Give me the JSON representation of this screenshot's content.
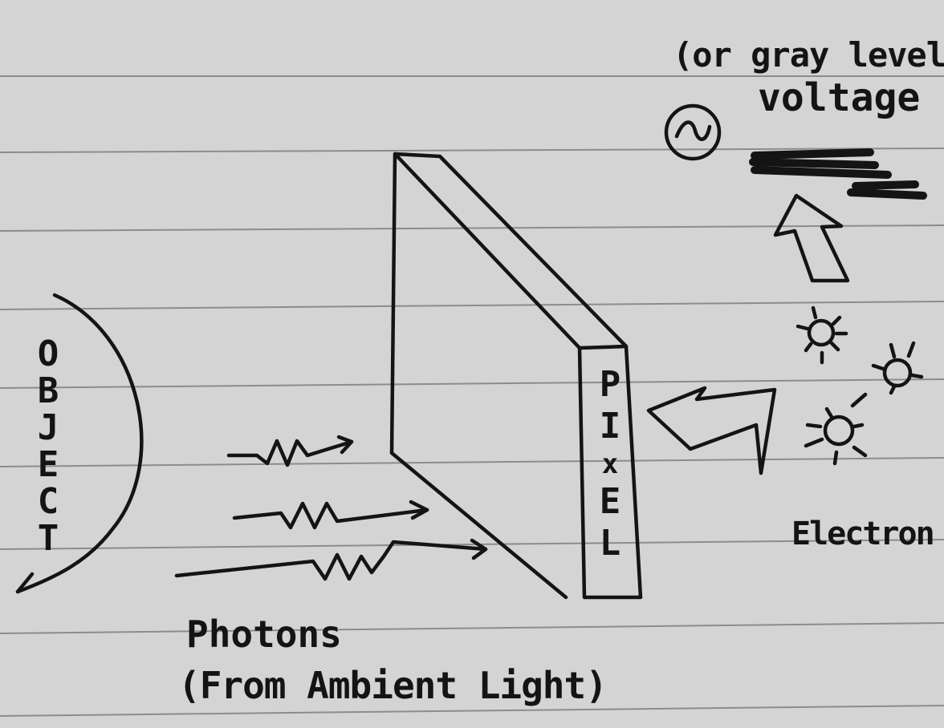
{
  "labels": {
    "object": [
      "O",
      "B",
      "J",
      "E",
      "C",
      "T"
    ],
    "pixel": [
      "P",
      "I",
      "x",
      "E",
      "L"
    ],
    "photons_line1": "Photons",
    "photons_line2": "(From Ambient Light)",
    "electron": "Electron",
    "voltage": "voltage",
    "gray_level": "(or gray level)"
  },
  "colors": {
    "paper": "#d4d4d4",
    "ruled_line": "#8c8c8c",
    "ink": "#141414"
  },
  "icons": [
    "ac-source-icon",
    "sun-icon",
    "arrow-icon",
    "squiggle-arrow-icon"
  ]
}
